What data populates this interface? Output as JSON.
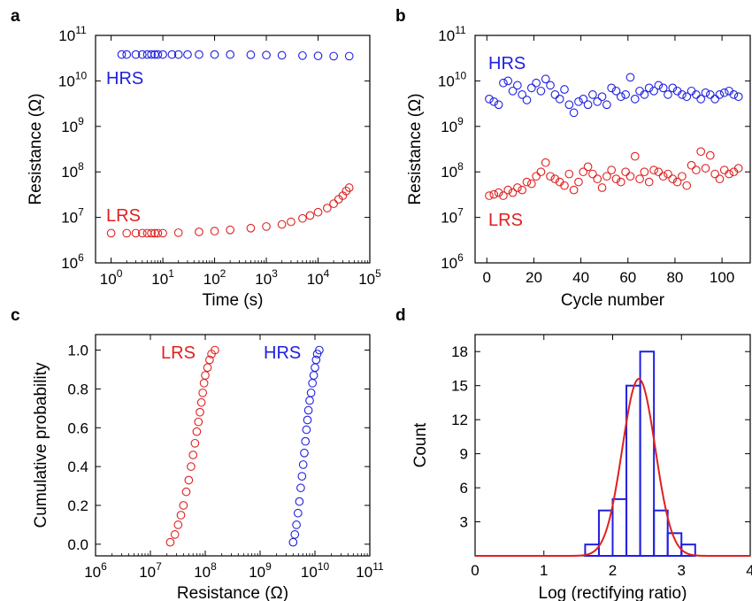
{
  "colors": {
    "hrs": "#1f1fe0",
    "lrs": "#e01f1f",
    "axis": "#000000",
    "fit": "#e01f1f"
  },
  "panels": {
    "a": {
      "label": "a"
    },
    "b": {
      "label": "b"
    },
    "c": {
      "label": "c"
    },
    "d": {
      "label": "d"
    }
  },
  "chart_data": [
    {
      "panel": "a",
      "type": "scatter",
      "xlabel": "Time (s)",
      "ylabel": "Resistance (Ω)",
      "xscale": "log",
      "yscale": "log",
      "xlim": [
        0.5,
        100000
      ],
      "ylim": [
        1000000,
        100000000000
      ],
      "xticks": [
        1,
        10,
        100,
        1000,
        10000,
        100000
      ],
      "yticks": [
        1000000,
        10000000,
        100000000,
        1000000000,
        10000000000,
        100000000000
      ],
      "annotations": [
        "HRS",
        "LRS"
      ],
      "series": [
        {
          "name": "HRS",
          "color": "#1f1fe0",
          "x": [
            1.6,
            2,
            3,
            4,
            5,
            6,
            7,
            8,
            10,
            15,
            20,
            30,
            50,
            100,
            200,
            500,
            1000,
            2000,
            5000,
            10000,
            20000,
            40000
          ],
          "y": [
            38000000000,
            38000000000,
            38000000000,
            38000000000,
            38000000000,
            38000000000,
            38000000000,
            38000000000,
            38000000000,
            38000000000,
            38000000000,
            38000000000,
            38000000000,
            38000000000,
            38000000000,
            37500000000,
            37000000000,
            36500000000,
            36000000000,
            35500000000,
            35000000000,
            35000000000
          ]
        },
        {
          "name": "LRS",
          "color": "#e01f1f",
          "x": [
            1,
            2,
            3,
            4,
            5,
            6,
            7,
            8,
            10,
            20,
            50,
            100,
            200,
            500,
            1000,
            2000,
            3000,
            5000,
            7000,
            10000,
            15000,
            20000,
            25000,
            30000,
            35000,
            40000
          ],
          "y": [
            4500000,
            4500000,
            4500000,
            4500000,
            4500000,
            4500000,
            4500000,
            4500000,
            4500000,
            4600000,
            4800000,
            5000000,
            5300000,
            5800000,
            6300000,
            7000000,
            8000000,
            9500000,
            11000000,
            13000000,
            16000000,
            20000000,
            25000000,
            30000000,
            38000000,
            45000000
          ]
        }
      ]
    },
    {
      "panel": "b",
      "type": "scatter",
      "xlabel": "Cycle number",
      "ylabel": "Resistance (Ω)",
      "xscale": "linear",
      "yscale": "log",
      "xlim": [
        -5,
        112
      ],
      "ylim": [
        1000000,
        100000000000
      ],
      "xticks": [
        0,
        20,
        40,
        60,
        80,
        100
      ],
      "yticks": [
        1000000,
        10000000,
        100000000,
        1000000000,
        10000000000,
        100000000000
      ],
      "annotations": [
        "HRS",
        "LRS"
      ],
      "series": [
        {
          "name": "HRS",
          "color": "#1f1fe0",
          "x": [
            1,
            3,
            5,
            7,
            9,
            11,
            13,
            15,
            17,
            19,
            21,
            23,
            25,
            27,
            29,
            31,
            33,
            35,
            37,
            39,
            41,
            43,
            45,
            47,
            49,
            51,
            53,
            55,
            57,
            59,
            61,
            63,
            65,
            67,
            69,
            71,
            73,
            75,
            77,
            79,
            81,
            83,
            85,
            87,
            89,
            91,
            93,
            95,
            97,
            99,
            101,
            103,
            105,
            107
          ],
          "y": [
            4000000000,
            3500000000,
            3000000000,
            9000000000,
            10000000000,
            6000000000,
            8000000000,
            5000000000,
            3800000000,
            7000000000,
            9000000000,
            6000000000,
            11000000000,
            8000000000,
            5000000000,
            4000000000,
            6500000000,
            3000000000,
            2000000000,
            3500000000,
            4000000000,
            3000000000,
            5000000000,
            3500000000,
            4500000000,
            3000000000,
            7000000000,
            6000000000,
            4500000000,
            5000000000,
            12000000000,
            4000000000,
            6000000000,
            5000000000,
            7000000000,
            6000000000,
            8000000000,
            7000000000,
            5000000000,
            7000000000,
            6000000000,
            5000000000,
            4500000000,
            6000000000,
            5000000000,
            4000000000,
            5500000000,
            5000000000,
            4000000000,
            5000000000,
            5500000000,
            6000000000,
            5000000000,
            4500000000
          ]
        },
        {
          "name": "LRS",
          "color": "#e01f1f",
          "x": [
            1,
            3,
            5,
            7,
            9,
            11,
            13,
            15,
            17,
            19,
            21,
            23,
            25,
            27,
            29,
            31,
            33,
            35,
            37,
            39,
            41,
            43,
            45,
            47,
            49,
            51,
            53,
            55,
            57,
            59,
            61,
            63,
            65,
            67,
            69,
            71,
            73,
            75,
            77,
            79,
            81,
            83,
            85,
            87,
            89,
            91,
            93,
            95,
            97,
            99,
            101,
            103,
            105,
            107
          ],
          "y": [
            30000000,
            32000000,
            35000000,
            30000000,
            40000000,
            35000000,
            45000000,
            40000000,
            60000000,
            55000000,
            80000000,
            100000000,
            160000000,
            80000000,
            70000000,
            60000000,
            50000000,
            90000000,
            40000000,
            60000000,
            100000000,
            130000000,
            90000000,
            70000000,
            45000000,
            80000000,
            110000000,
            70000000,
            60000000,
            100000000,
            80000000,
            220000000,
            70000000,
            100000000,
            60000000,
            110000000,
            100000000,
            80000000,
            90000000,
            70000000,
            60000000,
            80000000,
            50000000,
            140000000,
            110000000,
            280000000,
            120000000,
            230000000,
            90000000,
            70000000,
            110000000,
            90000000,
            100000000,
            120000000
          ]
        }
      ]
    },
    {
      "panel": "c",
      "type": "scatter",
      "xlabel": "Resistance (Ω)",
      "ylabel": "Cumulative probability",
      "xscale": "log",
      "yscale": "linear",
      "xlim": [
        1000000,
        100000000000
      ],
      "ylim": [
        -0.06,
        1.08
      ],
      "xticks": [
        1000000,
        10000000,
        100000000,
        1000000000,
        10000000000,
        100000000000
      ],
      "yticks": [
        0.0,
        0.2,
        0.4,
        0.6,
        0.8,
        1.0
      ],
      "ytick_labels": [
        "0.0",
        "0.2",
        "0.4",
        "0.6",
        "0.8",
        "1.0"
      ],
      "annotations": [
        "LRS",
        "HRS"
      ],
      "series": [
        {
          "name": "LRS",
          "color": "#e01f1f",
          "x": [
            23000000,
            28000000,
            32000000,
            36000000,
            40000000,
            45000000,
            50000000,
            55000000,
            60000000,
            65000000,
            70000000,
            75000000,
            80000000,
            85000000,
            90000000,
            95000000,
            100000000,
            110000000,
            120000000,
            130000000,
            150000000
          ],
          "y": [
            0.01,
            0.05,
            0.1,
            0.15,
            0.2,
            0.27,
            0.33,
            0.4,
            0.46,
            0.52,
            0.58,
            0.63,
            0.68,
            0.73,
            0.78,
            0.83,
            0.87,
            0.91,
            0.95,
            0.98,
            1.0
          ]
        },
        {
          "name": "HRS",
          "color": "#1f1fe0",
          "x": [
            4000000000,
            4300000000,
            4600000000,
            4900000000,
            5200000000,
            5500000000,
            5800000000,
            6100000000,
            6400000000,
            6700000000,
            7000000000,
            7300000000,
            7600000000,
            8000000000,
            8500000000,
            9000000000,
            9500000000,
            10000000000,
            10500000000,
            11000000000,
            12000000000
          ],
          "y": [
            0.01,
            0.05,
            0.1,
            0.16,
            0.22,
            0.29,
            0.35,
            0.41,
            0.47,
            0.53,
            0.59,
            0.64,
            0.69,
            0.74,
            0.78,
            0.83,
            0.87,
            0.91,
            0.95,
            0.98,
            1.0
          ]
        }
      ]
    },
    {
      "panel": "d",
      "type": "bar",
      "xlabel": "Log (rectifying ratio)",
      "ylabel": "Count",
      "xlim": [
        0,
        4
      ],
      "ylim": [
        0,
        19.5
      ],
      "xticks": [
        0,
        1,
        2,
        3,
        4
      ],
      "yticks": [
        3,
        6,
        9,
        12,
        15,
        18
      ],
      "bins": [
        {
          "x0": 1.6,
          "x1": 1.8,
          "count": 1
        },
        {
          "x0": 1.8,
          "x1": 2.0,
          "count": 4
        },
        {
          "x0": 2.0,
          "x1": 2.2,
          "count": 5
        },
        {
          "x0": 2.2,
          "x1": 2.4,
          "count": 15
        },
        {
          "x0": 2.4,
          "x1": 2.6,
          "count": 18
        },
        {
          "x0": 2.6,
          "x1": 2.8,
          "count": 4
        },
        {
          "x0": 2.8,
          "x1": 3.0,
          "count": 2
        },
        {
          "x0": 3.0,
          "x1": 3.2,
          "count": 1
        }
      ],
      "fit": {
        "type": "gaussian",
        "mean": 2.38,
        "sigma": 0.24,
        "amplitude": 15.6,
        "color": "#e01f1f"
      }
    }
  ]
}
